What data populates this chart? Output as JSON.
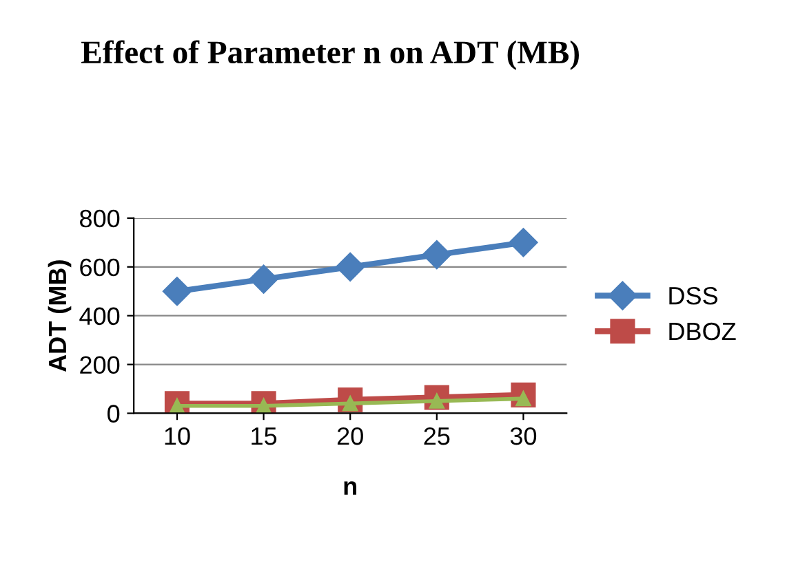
{
  "chart_data": {
    "type": "line",
    "title": "Effect of Parameter n on ADT (MB)",
    "xlabel": "n",
    "ylabel": "ADT (MB)",
    "categories": [
      "10",
      "15",
      "20",
      "25",
      "30"
    ],
    "series": [
      {
        "name": "DSS",
        "color": "#4a7ebb",
        "marker": "diamond",
        "values": [
          500,
          550,
          600,
          650,
          700
        ]
      },
      {
        "name": "DBOZ",
        "color": "#be4b48",
        "marker": "square",
        "values": [
          40,
          40,
          55,
          65,
          75
        ]
      },
      {
        "color": "#98b954",
        "marker": "triangle",
        "values": [
          30,
          30,
          40,
          50,
          60
        ]
      }
    ],
    "ylim": [
      0,
      800
    ],
    "yticks": [
      0,
      200,
      400,
      600,
      800
    ],
    "grid": "y",
    "legend": "right"
  }
}
